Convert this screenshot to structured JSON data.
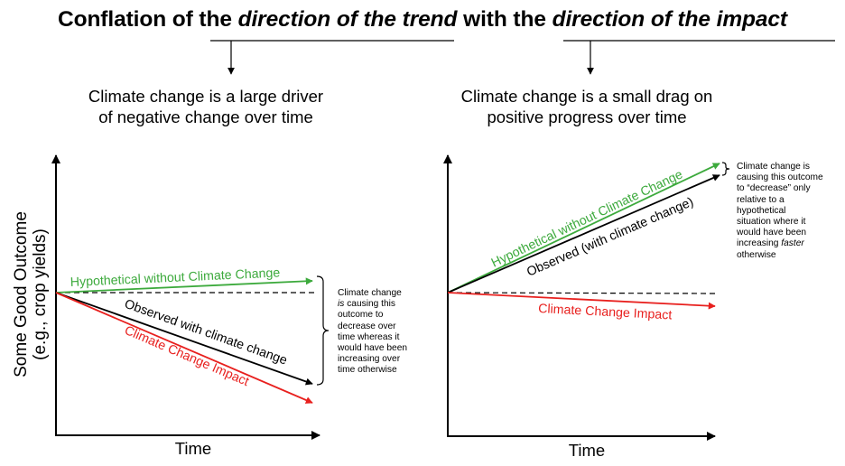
{
  "title": {
    "prefix": "Conflation of the ",
    "part1": "direction of the trend",
    "middle": " with the ",
    "part2": "direction of the impact"
  },
  "left_panel": {
    "heading_line1": "Climate change is a large driver",
    "heading_line2": "of negative change over time",
    "ylabel_line1": "Some Good Outcome",
    "ylabel_line2": "(e.g., crop yields)",
    "xlabel": "Time",
    "hypothetical_label": "Hypothetical without Climate Change",
    "observed_label": "Observed with climate change",
    "impact_label": "Climate Change Impact",
    "note": {
      "line1": "Climate change",
      "line2_em": "is",
      "line2_rest": " causing this",
      "line3": "outcome to",
      "line4": "decrease over",
      "line5": "time whereas it",
      "line6": "would have been",
      "line7": "increasing over",
      "line8": "time otherwise"
    }
  },
  "right_panel": {
    "heading_line1": "Climate change is a small drag on",
    "heading_line2": "positive progress over time",
    "xlabel": "Time",
    "hypothetical_label": "Hypothetical without Climate Change",
    "observed_label": "Observed (with climate change)",
    "impact_label": "Climate Change Impact",
    "note": {
      "line1": "Climate change is",
      "line2": "causing this outcome",
      "line3": "to “decrease” only",
      "line4": "relative to a",
      "line5": "hypothetical",
      "line6": "situation where it",
      "line7": "would have been",
      "line8_pre": "increasing ",
      "line8_em": "faster",
      "line9": "otherwise"
    }
  },
  "colors": {
    "hypothetical": "#3daa3d",
    "observed": "#000000",
    "impact": "#e8201e",
    "baseline": "#000000"
  }
}
